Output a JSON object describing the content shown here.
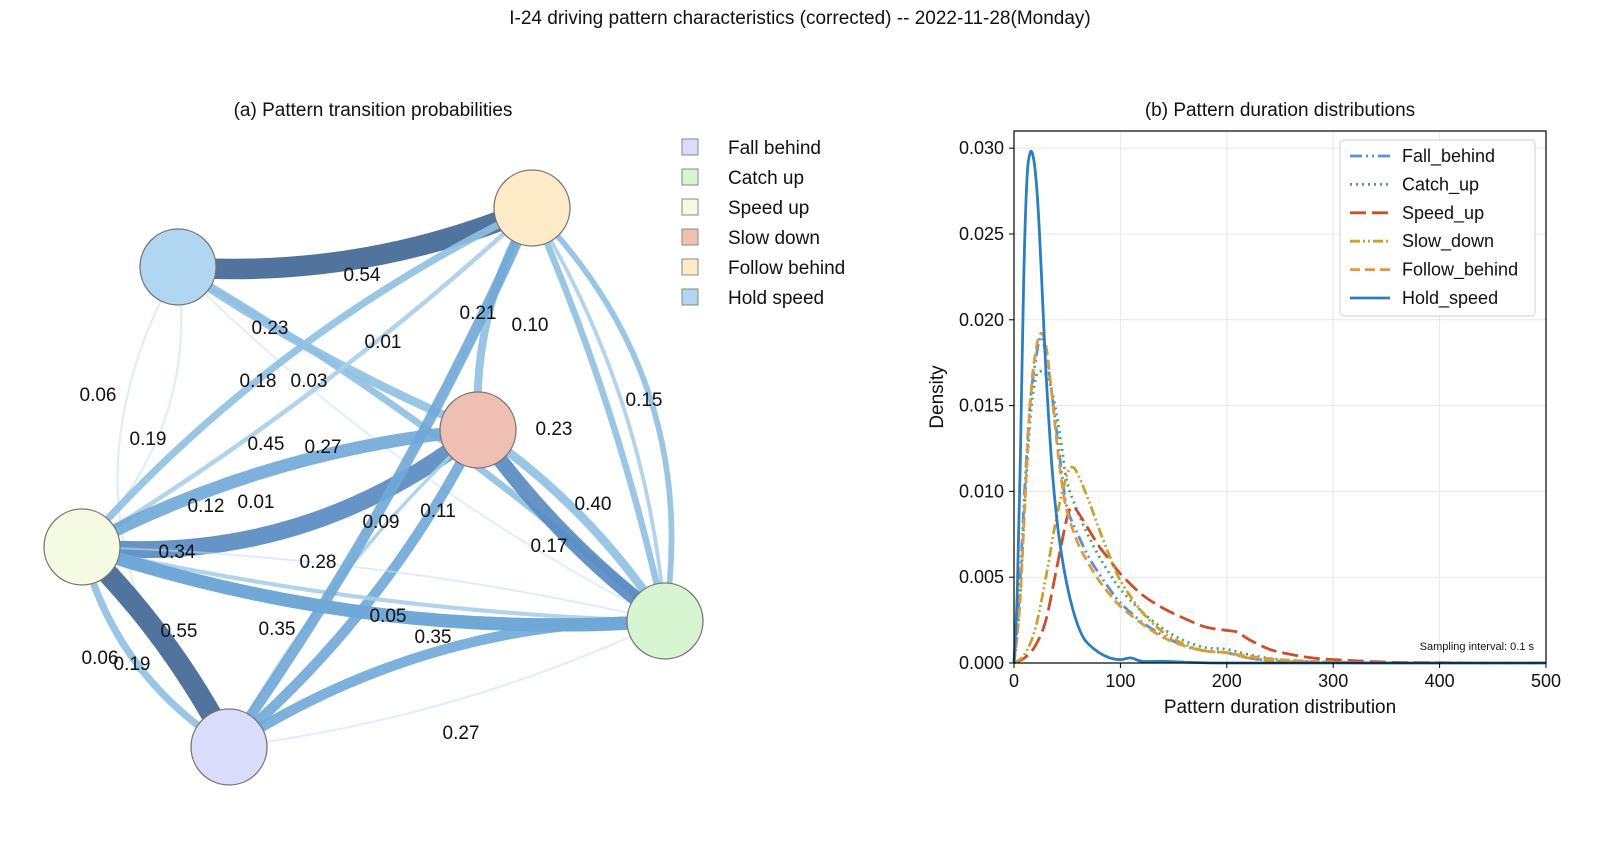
{
  "suptitle": "I-24 driving pattern characteristics (corrected) -- 2022-11-28(Monday)",
  "chart_data": [
    {
      "type": "network",
      "title": "(a) Pattern transition probabilities",
      "nodes": [
        {
          "name": "Fall behind",
          "color": "#d9dcfb"
        },
        {
          "name": "Catch up",
          "color": "#d8f5d2"
        },
        {
          "name": "Speed up",
          "color": "#f5fae2"
        },
        {
          "name": "Slow down",
          "color": "#efbfb4"
        },
        {
          "name": "Follow behind",
          "color": "#fdebc8"
        },
        {
          "name": "Hold speed",
          "color": "#b0d6f2"
        }
      ],
      "edges": [
        {
          "from": "Hold speed",
          "to": "Follow behind",
          "value": 0.54
        },
        {
          "from": "Hold speed",
          "to": "Fall behind",
          "value": 0.06
        },
        {
          "from": "Hold speed",
          "to": "Speed up",
          "value": 0.06
        },
        {
          "from": "Hold speed",
          "to": "Slow down",
          "value": 0.23
        },
        {
          "from": "Hold speed",
          "to": "Catch up",
          "value": 0.18
        },
        {
          "from": "Hold speed",
          "to": "Catch up",
          "value": 0.03
        },
        {
          "from": "Follow behind",
          "to": "Speed up",
          "value": 0.19
        },
        {
          "from": "Follow behind",
          "to": "Fall behind",
          "value": 0.01
        },
        {
          "from": "Follow behind",
          "to": "Slow down",
          "value": 0.21
        },
        {
          "from": "Follow behind",
          "to": "Catch up",
          "value": 0.1
        },
        {
          "from": "Follow behind",
          "to": "Catch up",
          "value": 0.15
        },
        {
          "from": "Speed up",
          "to": "Slow down",
          "value": 0.45
        },
        {
          "from": "Fall behind",
          "to": "Slow down",
          "value": 0.27
        },
        {
          "from": "Speed up",
          "to": "Follow behind",
          "value": 0.12
        },
        {
          "from": "Speed up",
          "to": "Catch up",
          "value": 0.01
        },
        {
          "from": "Slow down",
          "to": "Speed up",
          "value": 0.34
        },
        {
          "from": "Slow down",
          "to": "Catch up",
          "value": 0.23
        },
        {
          "from": "Slow down",
          "to": "Fall behind",
          "value": 0.09
        },
        {
          "from": "Speed up",
          "to": "Catch up",
          "value": 0.11
        },
        {
          "from": "Catch up",
          "to": "Slow down",
          "value": 0.4
        },
        {
          "from": "Catch up",
          "to": "Follow behind",
          "value": 0.17
        },
        {
          "from": "Fall behind",
          "to": "Follow behind",
          "value": 0.28
        },
        {
          "from": "Fall behind",
          "to": "Catch up",
          "value": 0.05
        },
        {
          "from": "Speed up",
          "to": "Catch up",
          "value": 0.35
        },
        {
          "from": "Catch up",
          "to": "Speed up",
          "value": 0.35
        },
        {
          "from": "Speed up",
          "to": "Fall behind",
          "value": 0.55
        },
        {
          "from": "Fall behind",
          "to": "Speed up",
          "value": 0.19
        },
        {
          "from": "Catch up",
          "to": "Fall behind",
          "value": 0.27
        }
      ]
    },
    {
      "type": "line",
      "title": "(b) Pattern duration distributions",
      "xlabel": "Pattern duration distribution",
      "ylabel": "Density",
      "xlim": [
        0,
        500
      ],
      "ylim": [
        0,
        0.031
      ],
      "xticks": [
        "0",
        "100",
        "200",
        "300",
        "400",
        "500"
      ],
      "yticks": [
        "0.000",
        "0.005",
        "0.010",
        "0.015",
        "0.020",
        "0.025",
        "0.030"
      ],
      "grid": true,
      "legend_position": "top-right",
      "annotation": "Sampling interval: 0.1 s",
      "series": [
        {
          "name": "Fall_behind",
          "color": "#5b8fd6",
          "dash": "12,4,2,4,2,4",
          "x": [
            0,
            5,
            10,
            15,
            20,
            25,
            30,
            35,
            40,
            45,
            50,
            60,
            70,
            80,
            90,
            100,
            120,
            140,
            160,
            180,
            200,
            220,
            250,
            300,
            350,
            400,
            500
          ],
          "y": [
            0,
            0.004,
            0.01,
            0.015,
            0.0175,
            0.019,
            0.018,
            0.016,
            0.0135,
            0.011,
            0.009,
            0.0075,
            0.0062,
            0.0052,
            0.0043,
            0.0035,
            0.0024,
            0.0016,
            0.001,
            0.0007,
            0.0006,
            0.0003,
            0.0001,
            3e-05,
            0,
            0,
            0
          ]
        },
        {
          "name": "Catch_up",
          "color": "#4aa564",
          "dash": "2,4",
          "x": [
            0,
            5,
            10,
            15,
            20,
            25,
            30,
            35,
            40,
            45,
            50,
            60,
            70,
            80,
            90,
            100,
            120,
            140,
            160,
            180,
            200,
            220,
            250,
            300,
            350,
            400,
            500
          ],
          "y": [
            0,
            0.003,
            0.009,
            0.014,
            0.0165,
            0.017,
            0.0168,
            0.016,
            0.0145,
            0.0125,
            0.0105,
            0.0088,
            0.0074,
            0.0062,
            0.0052,
            0.0043,
            0.003,
            0.002,
            0.0013,
            0.0009,
            0.0008,
            0.0005,
            0.0002,
            5e-05,
            0,
            0,
            0
          ]
        },
        {
          "name": "Speed_up",
          "color": "#c8502e",
          "dash": "16,6",
          "x": [
            0,
            10,
            20,
            30,
            40,
            50,
            55,
            60,
            70,
            80,
            90,
            100,
            120,
            140,
            160,
            180,
            200,
            210,
            220,
            240,
            260,
            280,
            300,
            350,
            400,
            450,
            500
          ],
          "y": [
            0,
            0.0003,
            0.001,
            0.0025,
            0.0055,
            0.0085,
            0.0091,
            0.0088,
            0.0078,
            0.0068,
            0.006,
            0.0052,
            0.004,
            0.0032,
            0.0026,
            0.0021,
            0.0019,
            0.0018,
            0.0014,
            0.0008,
            0.0005,
            0.0003,
            0.0002,
            5e-05,
            2e-05,
            0,
            0
          ]
        },
        {
          "name": "Slow_down",
          "color": "#c8a12e",
          "dash": "10,3,2,3,2,3",
          "x": [
            0,
            10,
            20,
            30,
            40,
            50,
            55,
            60,
            70,
            80,
            90,
            100,
            120,
            140,
            160,
            180,
            200,
            220,
            250,
            300,
            350,
            400,
            500
          ],
          "y": [
            0,
            0.0005,
            0.002,
            0.005,
            0.0085,
            0.011,
            0.0114,
            0.011,
            0.0095,
            0.0078,
            0.0062,
            0.0048,
            0.003,
            0.0018,
            0.0011,
            0.0007,
            0.0006,
            0.0003,
            0.0001,
            3e-05,
            0,
            0,
            0
          ]
        },
        {
          "name": "Follow_behind",
          "color": "#e09a3e",
          "dash": "10,5",
          "x": [
            0,
            5,
            10,
            15,
            20,
            25,
            30,
            35,
            40,
            45,
            50,
            60,
            70,
            80,
            90,
            100,
            120,
            140,
            160,
            180,
            200,
            220,
            250,
            300,
            350,
            400,
            500
          ],
          "y": [
            0,
            0.003,
            0.009,
            0.015,
            0.018,
            0.0192,
            0.0185,
            0.016,
            0.013,
            0.0105,
            0.0088,
            0.007,
            0.0058,
            0.0048,
            0.004,
            0.0033,
            0.0023,
            0.0015,
            0.001,
            0.0007,
            0.0006,
            0.0004,
            0.0002,
            5e-05,
            0,
            0,
            0
          ]
        },
        {
          "name": "Hold_speed",
          "color": "#2c7fbf",
          "dash": "",
          "x": [
            0,
            3,
            6,
            9,
            12,
            15,
            18,
            21,
            24,
            27,
            30,
            35,
            40,
            45,
            50,
            55,
            60,
            65,
            70,
            80,
            90,
            100,
            110,
            120,
            140,
            160,
            200,
            300,
            500
          ],
          "y": [
            0,
            0.004,
            0.012,
            0.022,
            0.028,
            0.0297,
            0.0295,
            0.028,
            0.025,
            0.021,
            0.017,
            0.012,
            0.0085,
            0.0062,
            0.0045,
            0.0032,
            0.0022,
            0.0015,
            0.0011,
            0.0006,
            0.0003,
            0.0002,
            0.0003,
            0.0001,
            0.0001,
            5e-05,
            0,
            0,
            0
          ]
        }
      ]
    }
  ]
}
